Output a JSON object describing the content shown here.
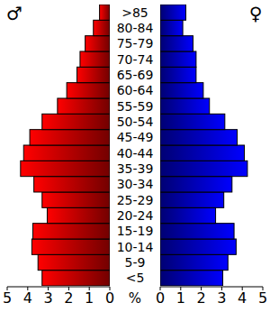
{
  "chart_data": {
    "type": "pyramid",
    "orientation": "horizontal",
    "x_label": "%",
    "categories": [
      "<5",
      "5-9",
      "10-14",
      "15-19",
      "20-24",
      "25-29",
      "30-34",
      "35-39",
      "40-44",
      "45-49",
      "50-54",
      "55-59",
      "60-64",
      "65-69",
      "70-74",
      "75-79",
      "80-84",
      ">85"
    ],
    "series": [
      {
        "name": "♂",
        "color": "#ff0000",
        "values": [
          3.3,
          3.5,
          3.8,
          3.75,
          3.05,
          3.3,
          3.7,
          4.35,
          4.2,
          3.9,
          3.3,
          2.55,
          2.1,
          1.6,
          1.45,
          1.2,
          0.8,
          0.5
        ]
      },
      {
        "name": "♀",
        "color": "#0000ff",
        "values": [
          3.05,
          3.3,
          3.7,
          3.6,
          2.7,
          3.1,
          3.5,
          4.25,
          4.1,
          3.75,
          3.15,
          2.4,
          2.1,
          1.75,
          1.75,
          1.6,
          1.1,
          1.25
        ]
      }
    ],
    "xlim": [
      0,
      5
    ],
    "xticks": [
      0,
      1,
      2,
      3,
      4,
      5
    ]
  }
}
